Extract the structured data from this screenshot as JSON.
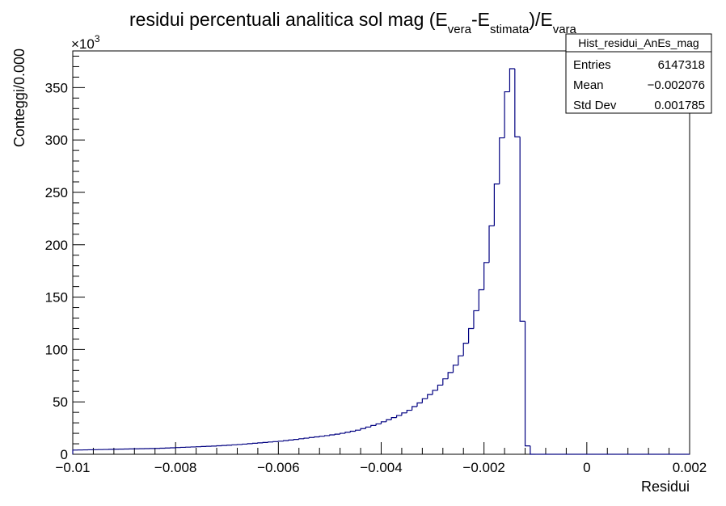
{
  "chart_data": {
    "type": "histogram",
    "title_main": "residui percentuali analitica sol mag (E",
    "title_sub_vera": "vera",
    "title_mid": "-E",
    "title_sub_stimata": "stimata",
    "title_end": ")/E",
    "title_sub_vara": "vara",
    "xlabel": "Residui",
    "ylabel": "Conteggi/0.000",
    "y_multiplier": "×10",
    "y_multiplier_exp": "3",
    "xlim": [
      -0.01,
      0.002
    ],
    "ylim": [
      0,
      385
    ],
    "bin_width": 0.0001,
    "line_color": "#000080",
    "x_ticks": [
      {
        "value": -0.01,
        "label": "−0.01"
      },
      {
        "value": -0.008,
        "label": "−0.008"
      },
      {
        "value": -0.006,
        "label": "−0.006"
      },
      {
        "value": -0.004,
        "label": "−0.004"
      },
      {
        "value": -0.002,
        "label": "−0.002"
      },
      {
        "value": 0,
        "label": "0"
      },
      {
        "value": 0.002,
        "label": "0.002"
      }
    ],
    "y_ticks": [
      {
        "value": 0,
        "label": "0"
      },
      {
        "value": 50,
        "label": "50"
      },
      {
        "value": 100,
        "label": "100"
      },
      {
        "value": 150,
        "label": "150"
      },
      {
        "value": 200,
        "label": "200"
      },
      {
        "value": 250,
        "label": "250"
      },
      {
        "value": 300,
        "label": "300"
      },
      {
        "value": 350,
        "label": "350"
      }
    ],
    "bin_start": -0.01,
    "counts_thousands": [
      4,
      4.1,
      4.2,
      4.3,
      4.4,
      4.5,
      4.6,
      4.7,
      4.8,
      4.9,
      5,
      5.1,
      5.2,
      5.3,
      5.4,
      5.5,
      5.6,
      5.8,
      6,
      6.2,
      6.4,
      6.6,
      6.8,
      7,
      7.2,
      7.4,
      7.6,
      7.8,
      8.1,
      8.4,
      8.7,
      9,
      9.3,
      9.7,
      10.1,
      10.5,
      10.9,
      11.3,
      11.7,
      12.1,
      12.5,
      13,
      13.6,
      14.2,
      14.8,
      15.4,
      16,
      16.6,
      17.2,
      17.8,
      18.5,
      19.2,
      20,
      21,
      22,
      23,
      24.5,
      26,
      27.5,
      29,
      31,
      33,
      35,
      37,
      39.5,
      42,
      45.5,
      49,
      53,
      57,
      61,
      66,
      72,
      78,
      85,
      94,
      106,
      120,
      137,
      157,
      183,
      218,
      258,
      302,
      346,
      368,
      303,
      127,
      8,
      0,
      0,
      0,
      0,
      0,
      0,
      0,
      0,
      0,
      0,
      0,
      0,
      0,
      0,
      0,
      0,
      0,
      0,
      0,
      0,
      0,
      0,
      0,
      0,
      0,
      0,
      0,
      0,
      0,
      0,
      0
    ]
  },
  "stats_box": {
    "title": "Hist_residui_AnEs_mag",
    "rows": [
      {
        "label": "Entries",
        "value": "6147318"
      },
      {
        "label": "Mean",
        "value": "−0.002076"
      },
      {
        "label": "Std Dev",
        "value": "0.001785"
      }
    ]
  }
}
